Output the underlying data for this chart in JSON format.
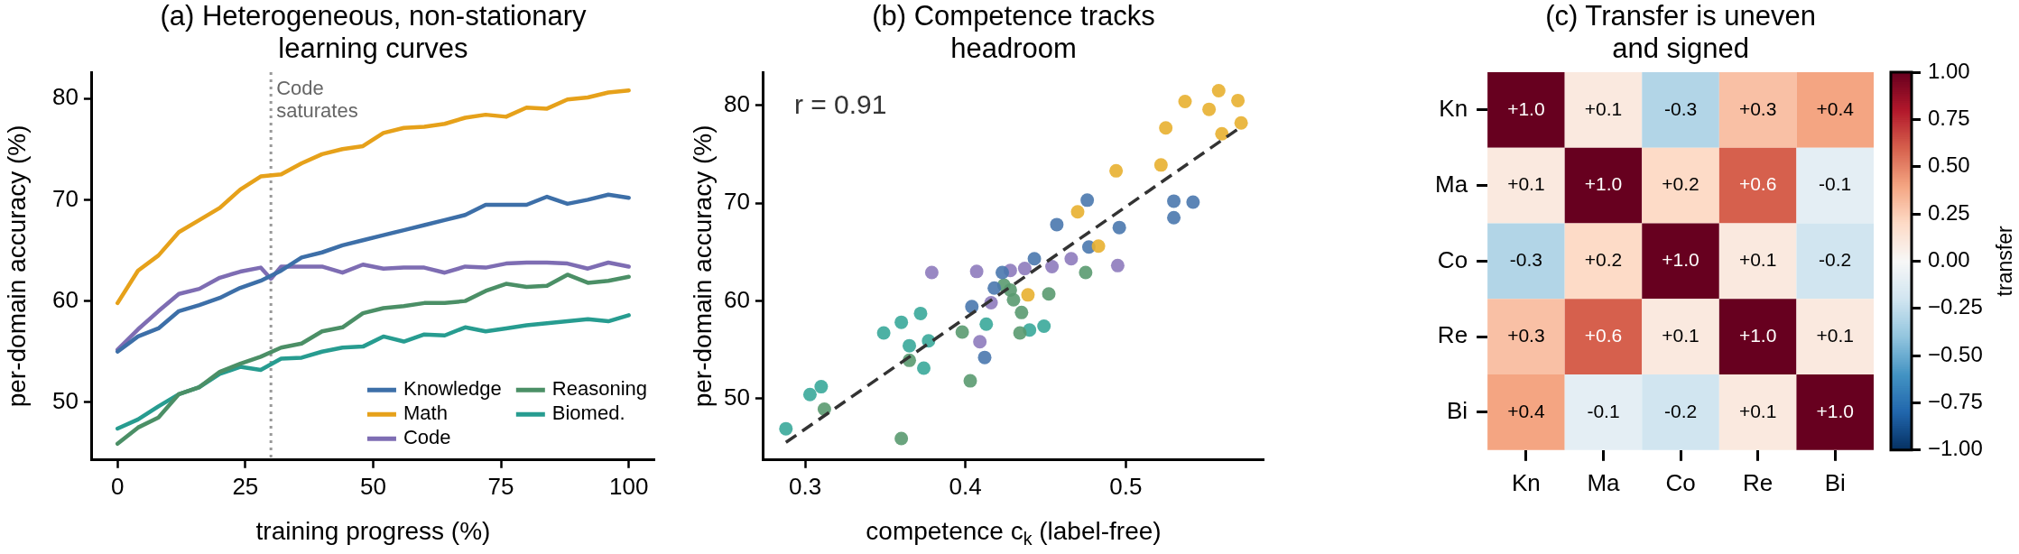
{
  "chart_data": [
    {
      "type": "line",
      "title": "(a) Heterogeneous, non-stationary\nlearning curves",
      "xlabel": "training progress (%)",
      "ylabel": "per-domain accuracy (%)",
      "x": [
        0,
        4,
        8,
        12,
        16,
        20,
        24,
        28,
        32,
        36,
        40,
        44,
        48,
        52,
        56,
        60,
        64,
        68,
        72,
        76,
        80,
        84,
        88,
        92,
        96,
        100
      ],
      "xlim": [
        -5,
        105
      ],
      "ylim": [
        44.3,
        82.6
      ],
      "xticks": [
        0,
        25,
        50,
        75,
        100
      ],
      "yticks": [
        50,
        60,
        70,
        80
      ],
      "legend": "bottom right",
      "ref_lines": [
        {
          "axis": "x",
          "value": 30,
          "label": "Code saturates",
          "color": "#999999",
          "line_style": "dotted"
        }
      ],
      "series": [
        {
          "name": "Knowledge",
          "color": "#3d6fa8",
          "values": [
            55.0,
            56.5,
            57.3,
            59.0,
            59.6,
            60.3,
            61.3,
            62.0,
            63.0,
            64.3,
            64.8,
            65.5,
            66.0,
            66.5,
            67.0,
            67.5,
            68.0,
            68.5,
            69.5,
            69.5,
            69.5,
            70.3,
            69.6,
            70.0,
            70.5,
            70.2
          ]
        },
        {
          "name": "Math",
          "color": "#e6a11a",
          "values": [
            59.8,
            63.0,
            64.5,
            66.8,
            68.0,
            69.2,
            71.0,
            72.3,
            72.5,
            73.6,
            74.5,
            75.0,
            75.3,
            76.6,
            77.1,
            77.2,
            77.5,
            78.1,
            78.4,
            78.2,
            79.1,
            79.0,
            79.9,
            80.1,
            80.6,
            80.8
          ]
        },
        {
          "name": "Code",
          "color": "#7e6db3",
          "x": [
            0,
            4,
            8,
            12,
            16,
            20,
            24,
            28,
            30,
            32,
            36,
            40,
            44,
            48,
            52,
            56,
            60,
            64,
            68,
            72,
            76,
            80,
            84,
            88,
            92,
            96,
            100
          ],
          "values": [
            55.2,
            57.2,
            59.0,
            60.7,
            61.2,
            62.3,
            62.9,
            63.3,
            62.2,
            63.4,
            63.4,
            63.4,
            62.8,
            63.6,
            63.2,
            63.3,
            63.3,
            62.8,
            63.4,
            63.3,
            63.7,
            63.8,
            63.8,
            63.7,
            63.2,
            63.8,
            63.4
          ]
        },
        {
          "name": "Reasoning",
          "color": "#4b8f66",
          "values": [
            45.9,
            47.5,
            48.5,
            50.8,
            51.5,
            53.0,
            53.8,
            54.5,
            55.4,
            55.8,
            57.0,
            57.4,
            58.8,
            59.3,
            59.5,
            59.8,
            59.8,
            60.0,
            61.0,
            61.7,
            61.4,
            61.5,
            62.6,
            61.8,
            62.0,
            62.4
          ]
        },
        {
          "name": "Biomed.",
          "color": "#279c90",
          "values": [
            47.4,
            48.3,
            49.6,
            50.8,
            51.5,
            52.8,
            53.5,
            53.2,
            54.3,
            54.4,
            55.0,
            55.4,
            55.5,
            56.5,
            56.0,
            56.7,
            56.6,
            57.4,
            57.0,
            57.3,
            57.6,
            57.8,
            58.0,
            58.2,
            58.0,
            58.6
          ]
        }
      ]
    },
    {
      "type": "scatter",
      "title": "(b) Competence tracks\nheadroom",
      "xlabel": "competence c$_{k}$ (label-free)",
      "ylabel": "per-domain accuracy (%)",
      "xlim": [
        0.274,
        0.586
      ],
      "ylim": [
        43.7,
        83.4
      ],
      "xticks": [
        0.3,
        0.4,
        0.5
      ],
      "yticks": [
        50,
        60,
        70,
        80
      ],
      "annotations": [
        "r = 0.91"
      ],
      "series": [
        {
          "color": "#e8b030",
          "x": [
            0.558,
            0.537,
            0.57,
            0.552,
            0.572,
            0.56,
            0.525,
            0.522,
            0.494,
            0.47,
            0.483,
            0.439
          ],
          "values": [
            81.5,
            80.4,
            80.5,
            79.6,
            78.2,
            77.1,
            77.7,
            73.9,
            73.3,
            69.1,
            65.6,
            60.6
          ]
        },
        {
          "color": "#4a78ae",
          "x": [
            0.476,
            0.53,
            0.542,
            0.53,
            0.457,
            0.496,
            0.477,
            0.443,
            0.423,
            0.418,
            0.404,
            0.412
          ],
          "values": [
            70.3,
            70.2,
            70.1,
            68.5,
            67.8,
            67.5,
            65.5,
            64.3,
            62.9,
            61.3,
            59.4,
            54.2
          ]
        },
        {
          "color": "#8e7bbd",
          "x": [
            0.379,
            0.407,
            0.428,
            0.437,
            0.454,
            0.466,
            0.495,
            0.416,
            0.409
          ],
          "values": [
            62.9,
            63.0,
            63.1,
            63.3,
            63.5,
            64.3,
            63.6,
            59.8,
            55.8
          ]
        },
        {
          "color": "#5a9a70",
          "x": [
            0.424,
            0.428,
            0.43,
            0.452,
            0.475,
            0.435,
            0.398,
            0.434,
            0.365,
            0.403,
            0.312,
            0.36
          ],
          "values": [
            61.6,
            61.1,
            60.1,
            60.7,
            62.9,
            58.8,
            56.8,
            56.7,
            53.9,
            51.8,
            48.9,
            45.9
          ]
        },
        {
          "color": "#3aa89a",
          "x": [
            0.288,
            0.303,
            0.31,
            0.349,
            0.36,
            0.372,
            0.365,
            0.377,
            0.374,
            0.413,
            0.44,
            0.449
          ],
          "values": [
            46.9,
            50.4,
            51.2,
            56.7,
            57.8,
            58.7,
            55.4,
            55.9,
            53.1,
            57.6,
            57.0,
            57.4
          ]
        },
        {
          "type": "line",
          "color": "#333333",
          "line_style": "dashed",
          "x": [
            0.288,
            0.572
          ],
          "values": [
            45.5,
            77.8
          ]
        }
      ]
    },
    {
      "type": "heatmap",
      "title": "(c) Transfer is uneven\nand signed",
      "categories": [
        "Kn",
        "Ma",
        "Co",
        "Re",
        "Bi"
      ],
      "y_categories": [
        "Kn",
        "Ma",
        "Co",
        "Re",
        "Bi"
      ],
      "cells": [
        [
          1.0,
          0.1,
          -0.3,
          0.3,
          0.4
        ],
        [
          0.1,
          1.0,
          0.2,
          0.6,
          -0.1
        ],
        [
          -0.3,
          0.2,
          1.0,
          0.1,
          -0.2
        ],
        [
          0.3,
          0.6,
          0.1,
          1.0,
          0.1
        ],
        [
          0.4,
          -0.1,
          -0.2,
          0.1,
          1.0
        ]
      ],
      "cell_labels": [
        [
          "+1.0",
          "+0.1",
          "-0.3",
          "+0.3",
          "+0.4"
        ],
        [
          "+0.1",
          "+1.0",
          "+0.2",
          "+0.6",
          "-0.1"
        ],
        [
          "-0.3",
          "+0.2",
          "+1.0",
          "+0.1",
          "-0.2"
        ],
        [
          "+0.3",
          "+0.6",
          "+0.1",
          "+1.0",
          "+0.1"
        ],
        [
          "+0.4",
          "-0.1",
          "-0.2",
          "+0.1",
          "+1.0"
        ]
      ],
      "clim": [
        -1,
        1
      ],
      "cticks": [
        {
          "value": -1,
          "label": "−1.00"
        },
        {
          "value": -0.75,
          "label": "−0.75"
        },
        {
          "value": -0.5,
          "label": "−0.50"
        },
        {
          "value": -0.25,
          "label": "−0.25"
        },
        {
          "value": 0,
          "label": "0.00"
        },
        {
          "value": 0.25,
          "label": "0.25"
        },
        {
          "value": 0.5,
          "label": "0.50"
        },
        {
          "value": 0.75,
          "label": "0.75"
        },
        {
          "value": 1,
          "label": "1.00"
        }
      ],
      "clabel": "transfer"
    }
  ]
}
